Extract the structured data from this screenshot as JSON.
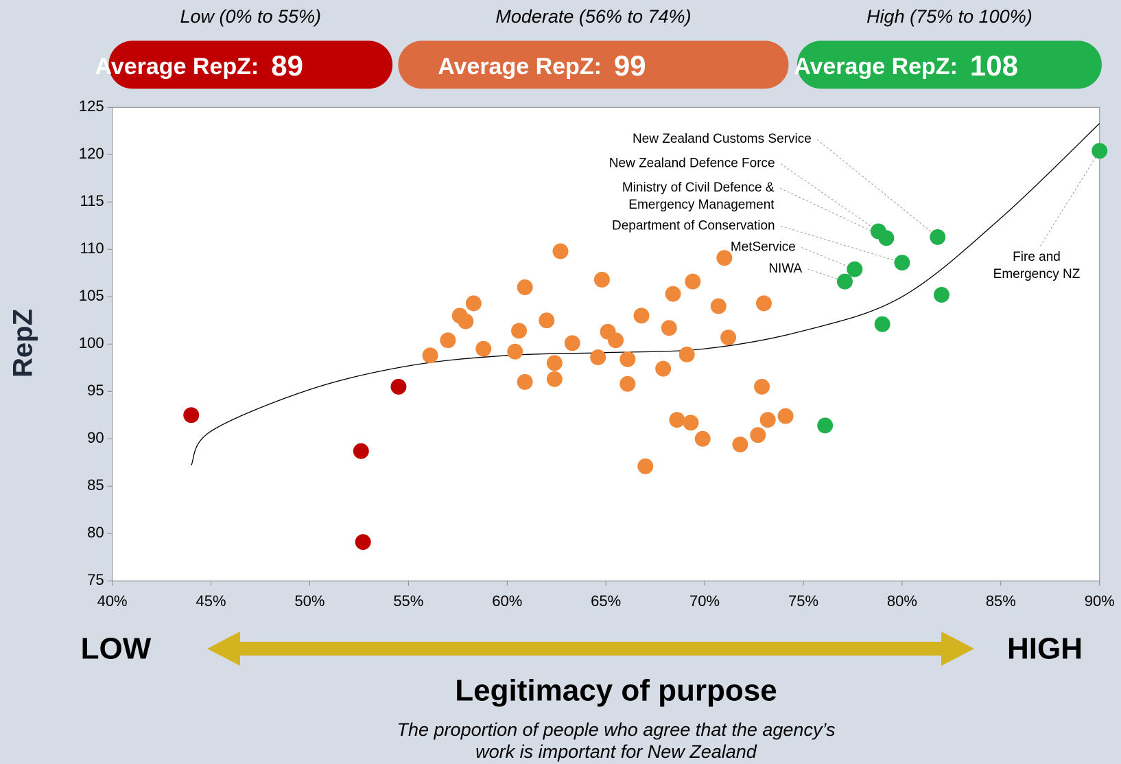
{
  "chart_data": {
    "type": "scatter",
    "xlabel": "Legitimacy of purpose",
    "ylabel": "RepZ",
    "note": [
      "The proportion of people who agree that the agency’s",
      "work is important for New Zealand"
    ],
    "scale_labels": [
      "LOW",
      "HIGH"
    ],
    "average_label": "Average RepZ:",
    "xlim": [
      40,
      90
    ],
    "ylim": [
      75,
      125
    ],
    "xticks": [
      {
        "value": 40,
        "label": "40%"
      },
      {
        "value": 45,
        "label": "45%"
      },
      {
        "value": 50,
        "label": "50%"
      },
      {
        "value": 55,
        "label": "55%"
      },
      {
        "value": 60,
        "label": "60%"
      },
      {
        "value": 65,
        "label": "65%"
      },
      {
        "value": 70,
        "label": "70%"
      },
      {
        "value": 75,
        "label": "75%"
      },
      {
        "value": 80,
        "label": "80%"
      },
      {
        "value": 85,
        "label": "85%"
      },
      {
        "value": 90,
        "label": "90%"
      }
    ],
    "yticks": [
      75,
      80,
      85,
      90,
      95,
      100,
      105,
      110,
      115,
      120,
      125
    ],
    "series": [
      {
        "name": "Low (0% to 55%)",
        "color": "#c00000",
        "average": 89,
        "x": [
          44.0,
          52.6,
          52.7,
          54.5
        ],
        "values": [
          92.5,
          88.7,
          79.1,
          95.5
        ]
      },
      {
        "name": "Moderate (56% to 74%)",
        "color": "#f0883a",
        "badge_color": "#dd6b40",
        "average": 99,
        "x": [
          56.1,
          57.0,
          57.6,
          57.9,
          58.3,
          58.8,
          60.4,
          60.6,
          60.9,
          60.9,
          62.0,
          62.4,
          62.4,
          62.7,
          63.3,
          64.6,
          64.8,
          65.1,
          65.5,
          66.1,
          66.1,
          66.8,
          67.0,
          67.9,
          68.2,
          68.4,
          68.6,
          69.1,
          69.3,
          69.4,
          69.9,
          70.7,
          71.0,
          71.2,
          71.8,
          72.7,
          72.9,
          73.0,
          73.2,
          74.1
        ],
        "values": [
          98.8,
          100.4,
          103.0,
          102.4,
          104.3,
          99.5,
          99.2,
          101.4,
          106.0,
          96.0,
          102.5,
          98.0,
          96.3,
          109.8,
          100.1,
          98.6,
          106.8,
          101.3,
          100.4,
          98.4,
          95.8,
          103.0,
          87.1,
          97.4,
          101.7,
          105.3,
          92.0,
          98.9,
          91.7,
          106.6,
          90.0,
          104.0,
          109.1,
          100.7,
          89.4,
          90.4,
          95.5,
          104.3,
          92.0,
          92.4
        ]
      },
      {
        "name": "High (75% to 100%)",
        "color": "#21b14c",
        "average": 108,
        "x": [
          76.1,
          77.1,
          77.6,
          78.8,
          79.2,
          79.0,
          80.0,
          81.8,
          82.0,
          90.0
        ],
        "values": [
          91.4,
          106.6,
          107.9,
          111.9,
          111.2,
          102.1,
          108.6,
          111.3,
          105.2,
          120.4
        ]
      }
    ],
    "trend": {
      "color": "#000000",
      "x": [
        44,
        45,
        50,
        55,
        60,
        65,
        70,
        75,
        80,
        85,
        90
      ],
      "values": [
        87.2,
        90.8,
        95.2,
        97.7,
        98.8,
        99.1,
        99.5,
        101.4,
        105.0,
        113.3,
        123.3
      ]
    },
    "annotations": [
      {
        "text": [
          "New Zealand Customs Service"
        ],
        "x": 81.8,
        "y": 111.3
      },
      {
        "text": [
          "New Zealand Defence Force"
        ],
        "x": 78.8,
        "y": 111.9
      },
      {
        "text": [
          "Ministry of Civil Defence &",
          "Emergency Management"
        ],
        "x": 79.2,
        "y": 111.2
      },
      {
        "text": [
          "Department of Conservation"
        ],
        "x": 80.0,
        "y": 108.6
      },
      {
        "text": [
          "MetService"
        ],
        "x": 77.6,
        "y": 107.9
      },
      {
        "text": [
          "NIWA"
        ],
        "x": 77.1,
        "y": 106.6
      },
      {
        "text": [
          "Fire and",
          "Emergency NZ"
        ],
        "x": 90.0,
        "y": 120.4
      }
    ]
  }
}
